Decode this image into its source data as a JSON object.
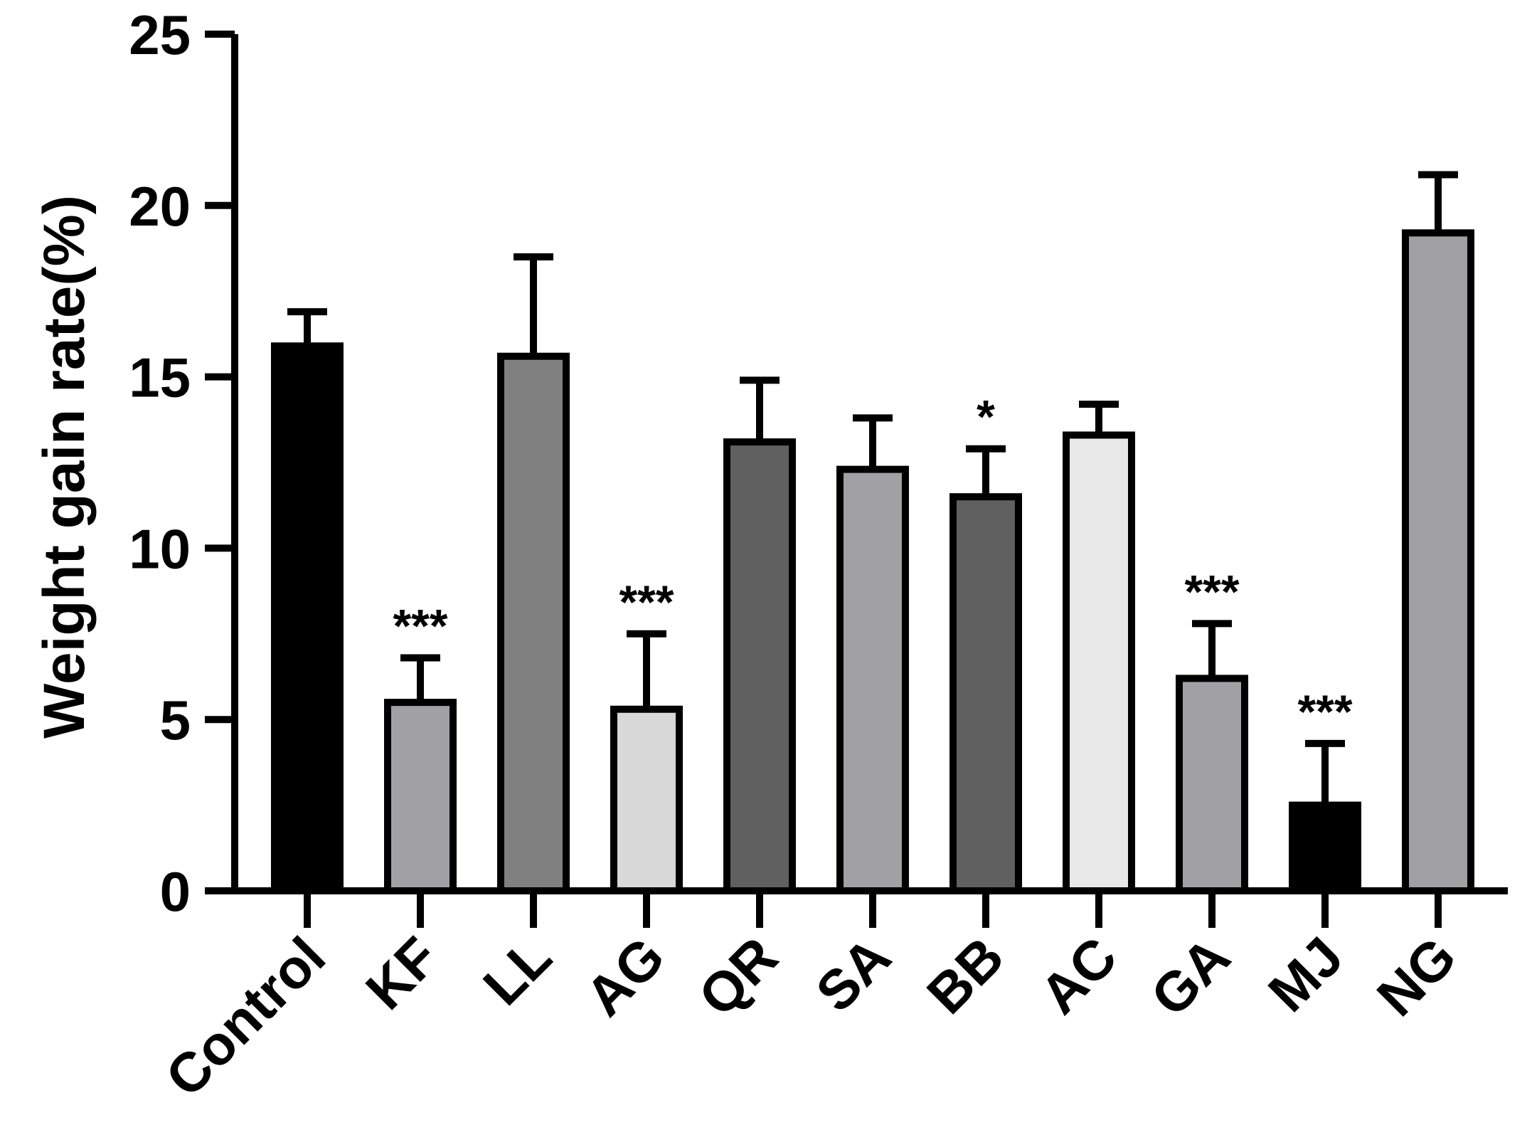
{
  "chart_data": {
    "type": "bar",
    "title": "",
    "xlabel": "",
    "ylabel": "Weight gain rate(%)",
    "ylim": [
      0,
      25
    ],
    "yticks": [
      "0",
      "5",
      "10",
      "15",
      "20",
      "25"
    ],
    "grid": false,
    "legend": "none",
    "categories": [
      "Control",
      "KF",
      "LL",
      "AG",
      "QR",
      "SA",
      "BB",
      "AC",
      "GA",
      "MJ",
      "NG"
    ],
    "values": [
      15.9,
      5.5,
      15.6,
      5.3,
      13.1,
      12.3,
      11.5,
      13.3,
      6.2,
      2.5,
      19.2
    ],
    "error_upper": [
      16.9,
      6.8,
      18.5,
      7.5,
      14.9,
      13.8,
      12.9,
      14.2,
      7.8,
      4.3,
      20.9
    ],
    "significance": [
      "",
      "***",
      "",
      "***",
      "",
      "",
      "*",
      "",
      "***",
      "***",
      ""
    ],
    "fill_colors": [
      "#000000",
      "#a0a0a5",
      "#808080",
      "#d8d8d8",
      "#606060",
      "#a0a0a5",
      "#606060",
      "#e8e8e8",
      "#a0a0a5",
      "#000000",
      "#a0a0a5"
    ],
    "edge_color": "#000000"
  }
}
